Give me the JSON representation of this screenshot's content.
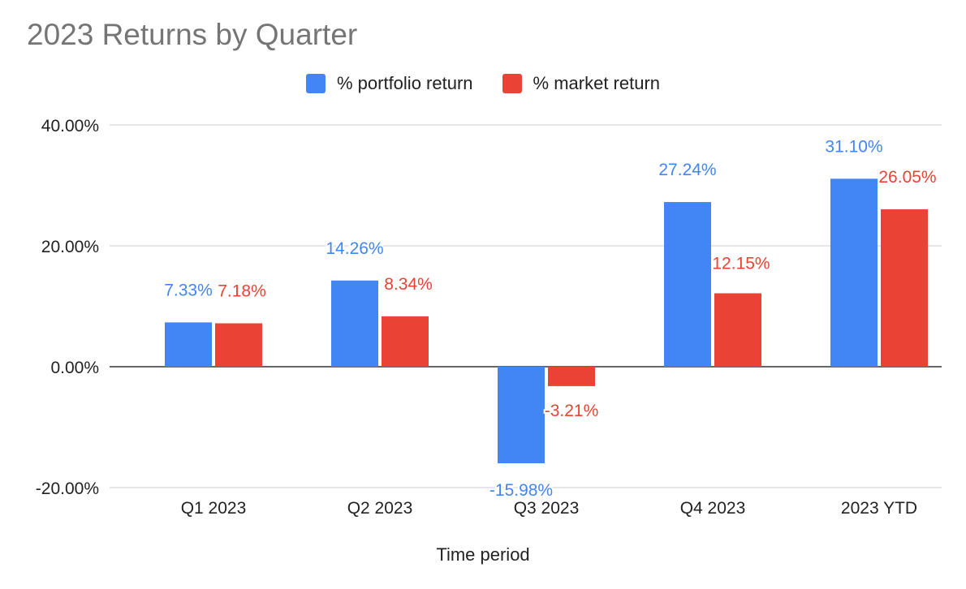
{
  "chart_data": {
    "type": "bar",
    "title": "2023 Returns by Quarter",
    "xlabel": "Time period",
    "ylabel": "",
    "categories": [
      "Q1 2023",
      "Q2 2023",
      "Q3 2023",
      "Q4 2023",
      "2023 YTD"
    ],
    "series": [
      {
        "name": "% portfolio return",
        "color": "#4285f4",
        "values": [
          7.33,
          14.26,
          -15.98,
          27.24,
          31.1
        ]
      },
      {
        "name": "% market return",
        "color": "#ea4335",
        "values": [
          7.18,
          8.34,
          -3.21,
          12.15,
          26.05
        ]
      }
    ],
    "ylim": [
      -20,
      40
    ],
    "yticks": [
      "-20.00%",
      "0.00%",
      "20.00%",
      "40.00%"
    ],
    "data_labels": [
      [
        "7.33%",
        "14.26%",
        "-15.98%",
        "27.24%",
        "31.10%"
      ],
      [
        "7.18%",
        "8.34%",
        "-3.21%",
        "12.15%",
        "26.05%"
      ]
    ],
    "grid": true,
    "legend_position": "top"
  }
}
